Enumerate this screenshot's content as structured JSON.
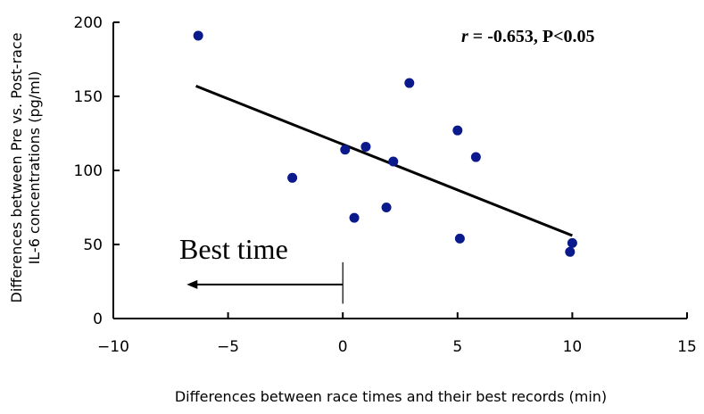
{
  "chart_data": {
    "type": "scatter",
    "xlabel": "Differences  between race times and their best records (min)",
    "ylabel_line1": "Differences between Pre vs. Post-race",
    "ylabel_line2": "IL-6 concentrations (pg/ml)",
    "xlim": [
      -10,
      15
    ],
    "ylim": [
      0,
      200
    ],
    "x_ticks": [
      -10,
      -5,
      0,
      5,
      10,
      15
    ],
    "y_ticks": [
      0,
      50,
      100,
      150,
      200
    ],
    "x_tick_labels": [
      "−10",
      "−5",
      "0",
      "5",
      "10",
      "15"
    ],
    "y_tick_labels": [
      "0",
      "50",
      "100",
      "150",
      "200"
    ],
    "grid": false,
    "legend": "none",
    "series": [
      {
        "color": "#0a1a8c",
        "points": [
          {
            "x": -6.3,
            "y": 191
          },
          {
            "x": -2.2,
            "y": 95
          },
          {
            "x": 0.1,
            "y": 114
          },
          {
            "x": 0.5,
            "y": 68
          },
          {
            "x": 1.0,
            "y": 116
          },
          {
            "x": 1.9,
            "y": 75
          },
          {
            "x": 2.2,
            "y": 106
          },
          {
            "x": 2.9,
            "y": 159
          },
          {
            "x": 5.0,
            "y": 127
          },
          {
            "x": 5.1,
            "y": 54
          },
          {
            "x": 5.8,
            "y": 109
          },
          {
            "x": 10.0,
            "y": 51
          },
          {
            "x": 9.9,
            "y": 45
          }
        ]
      }
    ],
    "trendline": {
      "x1": -6.4,
      "y1": 157,
      "x2": 10.0,
      "y2": 56
    },
    "stat_label": {
      "r_symbol": "r",
      "rest": " = -0.653, P<0.05"
    },
    "annotation": {
      "text": "Best time",
      "arrow_from_x": 0,
      "arrow_to_x": -6.8,
      "arrow_y": 23,
      "marker_x": 0,
      "marker_y_low": 10,
      "marker_y_high": 38
    }
  }
}
